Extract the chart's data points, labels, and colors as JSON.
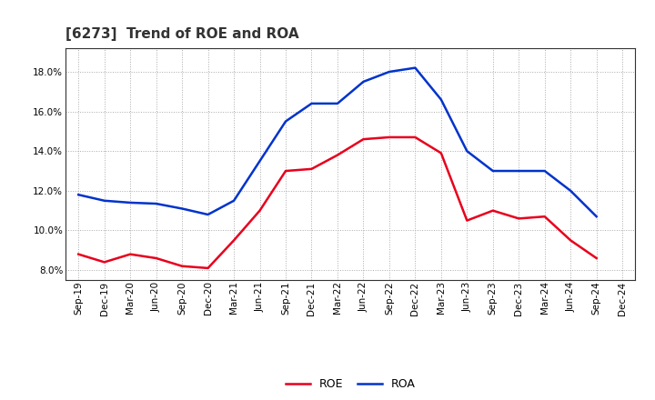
{
  "title": "[6273]  Trend of ROE and ROA",
  "x_labels": [
    "Sep-19",
    "Dec-19",
    "Mar-20",
    "Jun-20",
    "Sep-20",
    "Dec-20",
    "Mar-21",
    "Jun-21",
    "Sep-21",
    "Dec-21",
    "Mar-22",
    "Jun-22",
    "Sep-22",
    "Dec-22",
    "Mar-23",
    "Jun-23",
    "Sep-23",
    "Dec-23",
    "Mar-24",
    "Jun-24",
    "Sep-24",
    "Dec-24"
  ],
  "roe": [
    8.8,
    8.4,
    8.8,
    8.6,
    8.2,
    8.1,
    9.5,
    11.0,
    13.0,
    13.1,
    13.8,
    14.6,
    14.7,
    14.7,
    13.9,
    10.5,
    11.0,
    10.6,
    10.7,
    9.5,
    8.6,
    null
  ],
  "roa": [
    11.8,
    11.5,
    11.4,
    11.35,
    11.1,
    10.8,
    11.5,
    13.5,
    15.5,
    16.4,
    16.4,
    17.5,
    18.0,
    18.2,
    16.6,
    14.0,
    13.0,
    13.0,
    13.0,
    12.0,
    10.7,
    null
  ],
  "roe_color": "#e8001c",
  "roa_color": "#0033cc",
  "background_color": "#ffffff",
  "plot_bg_color": "#ffffff",
  "grid_color": "#aaaaaa",
  "ylim": [
    7.5,
    19.2
  ],
  "yticks": [
    8.0,
    10.0,
    12.0,
    14.0,
    16.0,
    18.0
  ],
  "title_fontsize": 11,
  "tick_fontsize": 7.5
}
